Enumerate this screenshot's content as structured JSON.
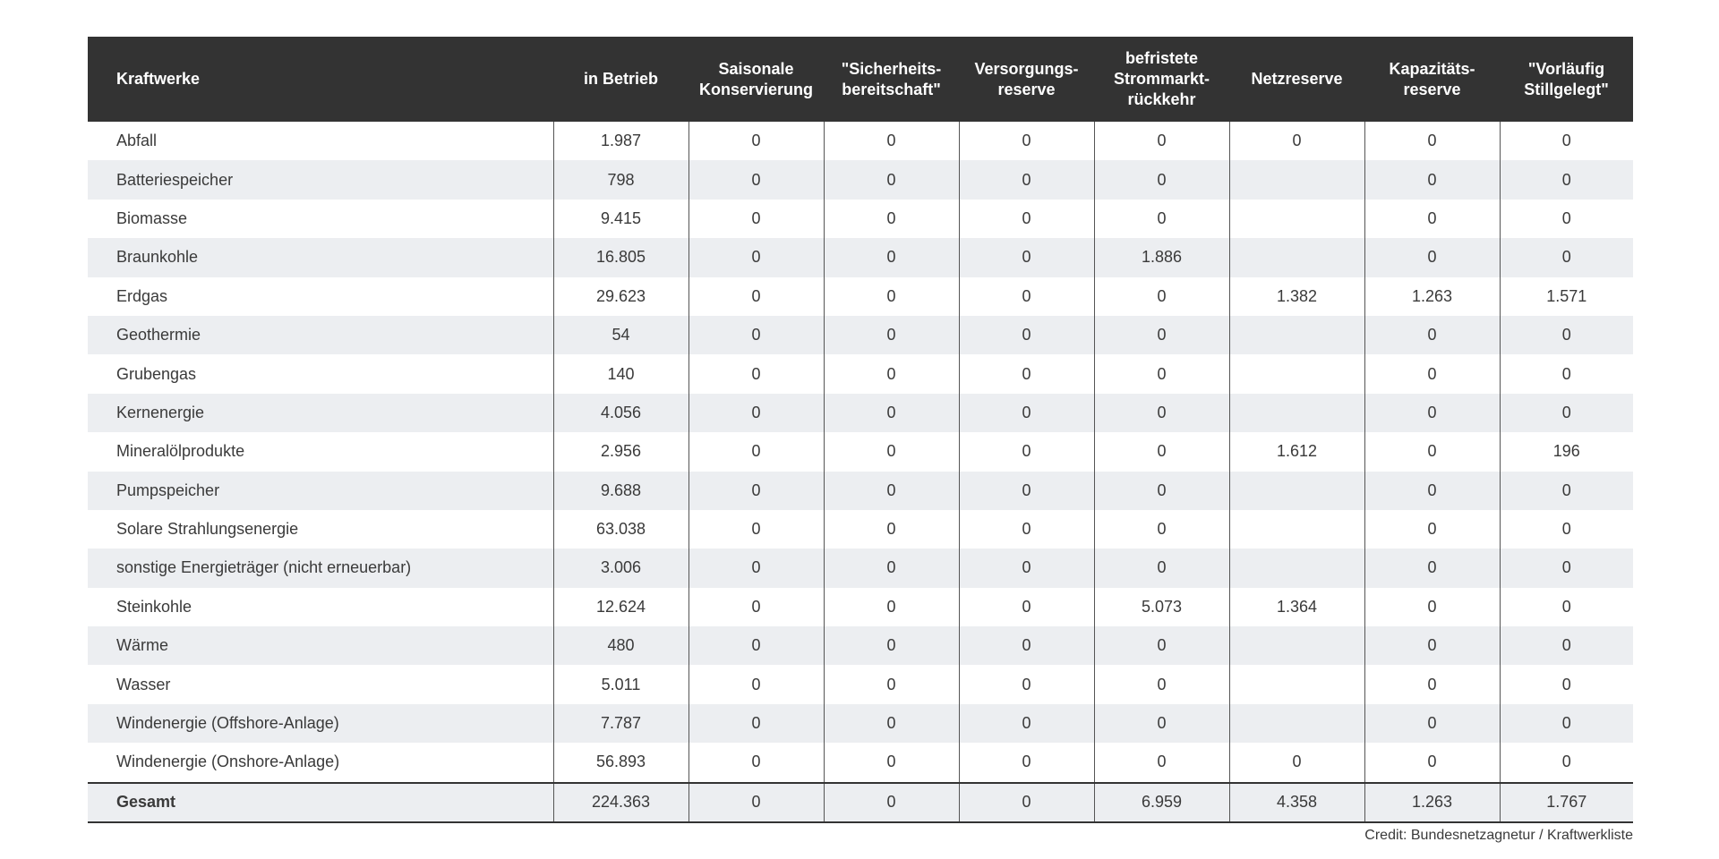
{
  "headers": [
    "Kraftwerke",
    "in Betrieb",
    "Saisonale Konservierung",
    "\"Sicherheits-bereitschaft\"",
    "Versorgungs-reserve",
    "befristete Strommarkt-rückkehr",
    "Netzreserve",
    "Kapazitäts-reserve",
    "\"Vorläufig Stillgelegt\""
  ],
  "rows": [
    [
      "Abfall",
      "1.987",
      "0",
      "0",
      "0",
      "0",
      "0",
      "0",
      "0"
    ],
    [
      "Batteriespeicher",
      "798",
      "0",
      "0",
      "0",
      "0",
      "",
      "0",
      "0"
    ],
    [
      "Biomasse",
      "9.415",
      "0",
      "0",
      "0",
      "0",
      "",
      "0",
      "0"
    ],
    [
      "Braunkohle",
      "16.805",
      "0",
      "0",
      "0",
      "1.886",
      "",
      "0",
      "0"
    ],
    [
      "Erdgas",
      "29.623",
      "0",
      "0",
      "0",
      "0",
      "1.382",
      "1.263",
      "1.571"
    ],
    [
      "Geothermie",
      "54",
      "0",
      "0",
      "0",
      "0",
      "",
      "0",
      "0"
    ],
    [
      "Grubengas",
      "140",
      "0",
      "0",
      "0",
      "0",
      "",
      "0",
      "0"
    ],
    [
      "Kernenergie",
      "4.056",
      "0",
      "0",
      "0",
      "0",
      "",
      "0",
      "0"
    ],
    [
      "Mineralölprodukte",
      "2.956",
      "0",
      "0",
      "0",
      "0",
      "1.612",
      "0",
      "196"
    ],
    [
      "Pumpspeicher",
      "9.688",
      "0",
      "0",
      "0",
      "0",
      "",
      "0",
      "0"
    ],
    [
      "Solare Strahlungsenergie",
      "63.038",
      "0",
      "0",
      "0",
      "0",
      "",
      "0",
      "0"
    ],
    [
      "sonstige Energieträger (nicht erneuerbar)",
      "3.006",
      "0",
      "0",
      "0",
      "0",
      "",
      "0",
      "0"
    ],
    [
      "Steinkohle",
      "12.624",
      "0",
      "0",
      "0",
      "5.073",
      "1.364",
      "0",
      "0"
    ],
    [
      "Wärme",
      "480",
      "0",
      "0",
      "0",
      "0",
      "",
      "0",
      "0"
    ],
    [
      "Wasser",
      "5.011",
      "0",
      "0",
      "0",
      "0",
      "",
      "0",
      "0"
    ],
    [
      "Windenergie (Offshore-Anlage)",
      "7.787",
      "0",
      "0",
      "0",
      "0",
      "",
      "0",
      "0"
    ],
    [
      "Windenergie (Onshore-Anlage)",
      "56.893",
      "0",
      "0",
      "0",
      "0",
      "0",
      "0",
      "0"
    ]
  ],
  "total": [
    "Gesamt",
    "224.363",
    "0",
    "0",
    "0",
    "6.959",
    "4.358",
    "1.263",
    "1.767"
  ],
  "credit": "Credit: Bundesnetzagnetur / Kraftwerkliste"
}
